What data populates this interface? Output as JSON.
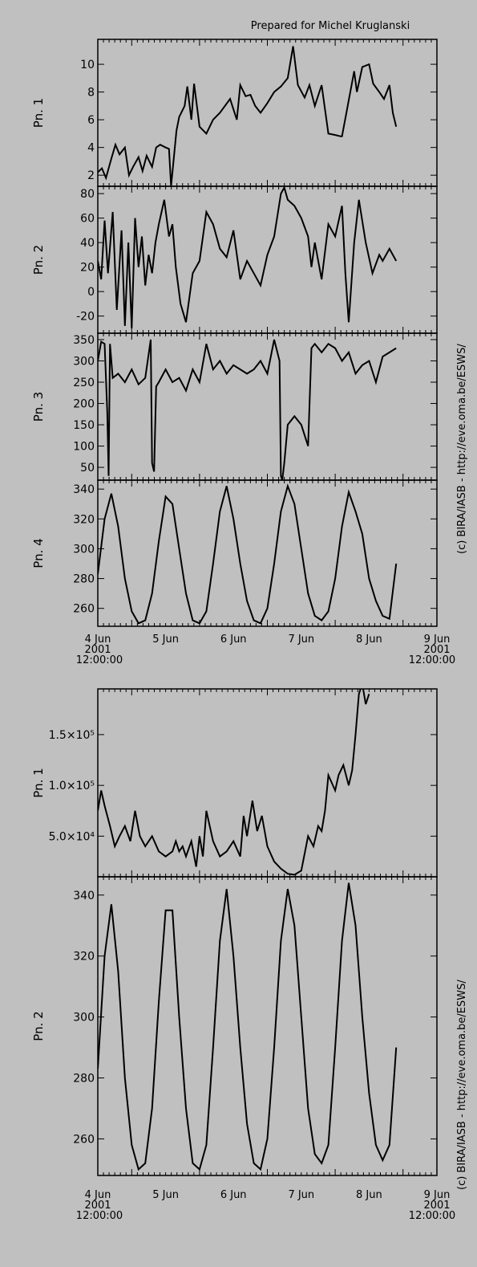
{
  "header": {
    "prepared_for": "Prepared for Michel Kruglanski"
  },
  "credit": "(c) BIRA/IASB - http://eve.oma.be/ESWS/",
  "colors": {
    "background": "#c0c0c0",
    "line": "#000000"
  },
  "chart_data": [
    {
      "type": "line",
      "panel": 1,
      "ylabel": "Pn. 1",
      "ylim": [
        1.2,
        11.8
      ],
      "yticks": [
        2,
        4,
        6,
        8,
        10
      ],
      "x": [
        4.5,
        4.56,
        4.62,
        4.7,
        4.76,
        4.82,
        4.9,
        4.96,
        5.02,
        5.1,
        5.16,
        5.22,
        5.3,
        5.36,
        5.42,
        5.5,
        5.55,
        5.58,
        5.66,
        5.7,
        5.78,
        5.82,
        5.88,
        5.92,
        6.0,
        6.1,
        6.2,
        6.3,
        6.45,
        6.55,
        6.6,
        6.68,
        6.75,
        6.82,
        6.9,
        7.0,
        7.1,
        7.2,
        7.3,
        7.38,
        7.45,
        7.55,
        7.62,
        7.7,
        7.8,
        7.9,
        8.0,
        8.08,
        8.1,
        8.28,
        8.32,
        8.4,
        8.5,
        8.56,
        8.65,
        8.72,
        8.8,
        8.85,
        8.9
      ],
      "series": [
        {
          "values": [
            2.2,
            2.5,
            1.8,
            3.2,
            4.2,
            3.5,
            4.0,
            2.0,
            2.6,
            3.3,
            2.3,
            3.4,
            2.6,
            4.0,
            4.2,
            4.0,
            3.9,
            1.2,
            5.2,
            6.2,
            7.0,
            8.4,
            6.0,
            8.6,
            5.5,
            5.0,
            6.0,
            6.5,
            7.5,
            6.0,
            8.5,
            7.7,
            7.8,
            7.0,
            6.5,
            7.2,
            8.0,
            8.4,
            9.0,
            11.3,
            8.5,
            7.6,
            8.5,
            7.0,
            8.5,
            5.0,
            4.9,
            4.8,
            4.8,
            9.5,
            8.0,
            9.8,
            10.0,
            8.6,
            8.0,
            7.5,
            8.5,
            6.5,
            5.5
          ]
        }
      ]
    },
    {
      "type": "line",
      "panel": 2,
      "ylabel": "Pn. 2",
      "ylim": [
        -34,
        86
      ],
      "yticks": [
        -20,
        0,
        20,
        40,
        60,
        80
      ],
      "x": [
        4.5,
        4.55,
        4.6,
        4.65,
        4.72,
        4.78,
        4.85,
        4.9,
        4.95,
        5.0,
        5.05,
        5.1,
        5.15,
        5.2,
        5.25,
        5.3,
        5.35,
        5.4,
        5.48,
        5.55,
        5.6,
        5.65,
        5.72,
        5.8,
        5.9,
        6.0,
        6.1,
        6.2,
        6.3,
        6.4,
        6.5,
        6.6,
        6.7,
        6.8,
        6.9,
        7.0,
        7.1,
        7.2,
        7.25,
        7.3,
        7.4,
        7.5,
        7.6,
        7.65,
        7.7,
        7.8,
        7.9,
        8.0,
        8.1,
        8.15,
        8.2,
        8.28,
        8.35,
        8.45,
        8.55,
        8.65,
        8.7,
        8.8,
        8.9
      ],
      "series": [
        {
          "values": [
            25,
            10,
            58,
            15,
            65,
            -15,
            50,
            -28,
            40,
            -30,
            60,
            20,
            45,
            5,
            30,
            15,
            40,
            55,
            75,
            45,
            55,
            20,
            -10,
            -25,
            15,
            25,
            65,
            55,
            35,
            28,
            50,
            10,
            25,
            15,
            5,
            30,
            45,
            80,
            85,
            75,
            70,
            60,
            45,
            20,
            40,
            10,
            55,
            45,
            70,
            15,
            -25,
            40,
            75,
            40,
            15,
            30,
            25,
            35,
            25
          ]
        }
      ]
    },
    {
      "type": "line",
      "panel": 3,
      "ylabel": "Pn. 3",
      "ylim": [
        20,
        365
      ],
      "yticks": [
        50,
        100,
        150,
        200,
        250,
        300,
        350
      ],
      "x": [
        4.5,
        4.55,
        4.6,
        4.64,
        4.66,
        4.68,
        4.72,
        4.8,
        4.9,
        5.0,
        5.1,
        5.2,
        5.28,
        5.3,
        5.33,
        5.36,
        5.4,
        5.5,
        5.6,
        5.7,
        5.8,
        5.9,
        6.0,
        6.1,
        6.2,
        6.3,
        6.4,
        6.5,
        6.6,
        6.7,
        6.8,
        6.9,
        7.0,
        7.1,
        7.18,
        7.2,
        7.22,
        7.25,
        7.3,
        7.4,
        7.5,
        7.6,
        7.65,
        7.7,
        7.8,
        7.9,
        8.0,
        8.1,
        8.2,
        8.3,
        8.4,
        8.5,
        8.6,
        8.7,
        8.8,
        8.9
      ],
      "series": [
        {
          "values": [
            300,
            345,
            340,
            180,
            30,
            340,
            260,
            270,
            250,
            280,
            245,
            260,
            350,
            60,
            40,
            240,
            250,
            280,
            250,
            260,
            230,
            280,
            250,
            340,
            280,
            300,
            270,
            290,
            280,
            270,
            280,
            300,
            270,
            350,
            300,
            30,
            20,
            60,
            150,
            170,
            150,
            100,
            330,
            340,
            320,
            340,
            330,
            300,
            320,
            270,
            290,
            300,
            250,
            310,
            320,
            330
          ]
        }
      ]
    },
    {
      "type": "line",
      "panel": 4,
      "ylabel": "Pn. 4",
      "ylim": [
        248,
        346
      ],
      "yticks": [
        260,
        280,
        300,
        320,
        340
      ],
      "x": [
        4.5,
        4.6,
        4.7,
        4.8,
        4.9,
        5.0,
        5.1,
        5.2,
        5.3,
        5.4,
        5.5,
        5.6,
        5.7,
        5.8,
        5.9,
        6.0,
        6.1,
        6.2,
        6.3,
        6.4,
        6.5,
        6.6,
        6.7,
        6.8,
        6.9,
        7.0,
        7.1,
        7.2,
        7.3,
        7.4,
        7.5,
        7.6,
        7.7,
        7.8,
        7.9,
        8.0,
        8.1,
        8.2,
        8.3,
        8.4,
        8.5,
        8.6,
        8.7,
        8.8,
        8.9
      ],
      "series": [
        {
          "values": [
            283,
            320,
            337,
            315,
            280,
            258,
            250,
            252,
            270,
            305,
            335,
            330,
            300,
            270,
            252,
            250,
            258,
            290,
            325,
            342,
            320,
            290,
            265,
            252,
            250,
            260,
            290,
            325,
            342,
            330,
            300,
            270,
            255,
            252,
            258,
            280,
            315,
            338,
            325,
            310,
            280,
            265,
            255,
            253,
            290
          ]
        }
      ]
    },
    {
      "type": "line",
      "panel": 1,
      "ylabel": "Pn. 1",
      "ylim": [
        10000,
        195000
      ],
      "yticks": [
        "5.0×10⁴",
        "1.0×10⁵",
        "1.5×10⁵"
      ],
      "ytick_values": [
        50000,
        100000,
        150000
      ],
      "x": [
        4.5,
        4.55,
        4.6,
        4.68,
        4.75,
        4.82,
        4.9,
        4.98,
        5.05,
        5.12,
        5.2,
        5.3,
        5.4,
        5.5,
        5.6,
        5.65,
        5.7,
        5.75,
        5.8,
        5.88,
        5.95,
        6.0,
        6.05,
        6.1,
        6.2,
        6.3,
        6.4,
        6.5,
        6.6,
        6.65,
        6.7,
        6.78,
        6.85,
        6.92,
        7.0,
        7.1,
        7.2,
        7.3,
        7.4,
        7.5,
        7.6,
        7.68,
        7.75,
        7.8,
        7.85,
        7.9,
        8.0,
        8.05,
        8.12,
        8.2,
        8.25,
        8.3,
        8.35,
        8.4,
        8.45,
        8.5
      ],
      "series": [
        {
          "values": [
            75000,
            95000,
            80000,
            60000,
            40000,
            50000,
            60000,
            45000,
            75000,
            50000,
            40000,
            50000,
            35000,
            30000,
            35000,
            45000,
            35000,
            40000,
            30000,
            45000,
            20000,
            50000,
            30000,
            75000,
            45000,
            30000,
            35000,
            45000,
            30000,
            70000,
            50000,
            85000,
            55000,
            70000,
            40000,
            25000,
            18000,
            13000,
            12000,
            16000,
            50000,
            40000,
            60000,
            55000,
            75000,
            110000,
            95000,
            110000,
            120000,
            100000,
            115000,
            150000,
            190000,
            200000,
            180000,
            190000
          ]
        }
      ]
    },
    {
      "type": "line",
      "panel": 2,
      "ylabel": "Pn. 2",
      "ylim": [
        248,
        346
      ],
      "yticks": [
        260,
        280,
        300,
        320,
        340
      ],
      "x": [
        4.5,
        4.6,
        4.7,
        4.8,
        4.9,
        5.0,
        5.1,
        5.2,
        5.3,
        5.4,
        5.5,
        5.6,
        5.7,
        5.8,
        5.9,
        6.0,
        6.1,
        6.2,
        6.3,
        6.4,
        6.5,
        6.6,
        6.7,
        6.8,
        6.9,
        7.0,
        7.1,
        7.2,
        7.3,
        7.4,
        7.5,
        7.6,
        7.7,
        7.8,
        7.9,
        8.0,
        8.1,
        8.2,
        8.3,
        8.4,
        8.5,
        8.6,
        8.7,
        8.8,
        8.9
      ],
      "series": [
        {
          "values": [
            283,
            320,
            337,
            315,
            280,
            258,
            250,
            252,
            270,
            305,
            335,
            335,
            300,
            270,
            252,
            250,
            258,
            290,
            325,
            342,
            320,
            290,
            265,
            252,
            250,
            260,
            290,
            325,
            342,
            330,
            300,
            270,
            255,
            252,
            258,
            290,
            325,
            344,
            330,
            300,
            275,
            258,
            253,
            258,
            290
          ]
        }
      ]
    }
  ],
  "x_axis": {
    "range_days": [
      4.5,
      9.5
    ],
    "tick_labels": [
      "4 Jun",
      "5 Jun",
      "6 Jun",
      "7 Jun",
      "8 Jun",
      "9 Jun"
    ],
    "start_year": "2001",
    "start_time": "12:00:00",
    "end_year": "2001",
    "end_time": "12:00:00"
  }
}
